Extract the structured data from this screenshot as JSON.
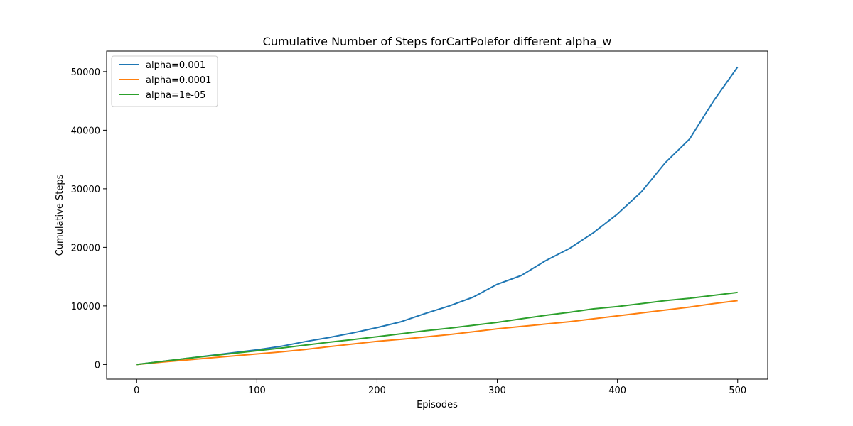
{
  "chart_data": {
    "type": "line",
    "title": "Cumulative Number of Steps forCartPolefor different alpha_w",
    "xlabel": "Episodes",
    "ylabel": "Cumulative Steps",
    "xlim": [
      -25,
      525
    ],
    "ylim": [
      -2500,
      53500
    ],
    "xticks": [
      0,
      100,
      200,
      300,
      400,
      500
    ],
    "yticks": [
      0,
      10000,
      20000,
      30000,
      40000,
      50000
    ],
    "grid": false,
    "legend_position": "upper-left",
    "x": [
      0,
      20,
      40,
      60,
      80,
      100,
      120,
      140,
      160,
      180,
      200,
      220,
      240,
      260,
      280,
      300,
      320,
      340,
      360,
      380,
      400,
      420,
      440,
      460,
      480,
      500
    ],
    "series": [
      {
        "name": "alpha=0.001",
        "color": "#1f77b4",
        "values": [
          0,
          500,
          1000,
          1500,
          2000,
          2500,
          3100,
          3900,
          4600,
          5400,
          6300,
          7300,
          8700,
          10000,
          11500,
          13700,
          15200,
          17700,
          19800,
          22500,
          25700,
          29500,
          34500,
          38500,
          45000,
          50800
        ]
      },
      {
        "name": "alpha=0.0001",
        "color": "#ff7f0e",
        "values": [
          0,
          400,
          750,
          1100,
          1450,
          1800,
          2150,
          2550,
          3050,
          3500,
          3950,
          4300,
          4700,
          5100,
          5600,
          6100,
          6500,
          6900,
          7300,
          7800,
          8300,
          8800,
          9300,
          9800,
          10400,
          10900
        ]
      },
      {
        "name": "alpha=1e-05",
        "color": "#2ca02c",
        "values": [
          0,
          500,
          1000,
          1450,
          1900,
          2350,
          2800,
          3300,
          3800,
          4250,
          4750,
          5250,
          5750,
          6200,
          6700,
          7200,
          7800,
          8400,
          8900,
          9500,
          9900,
          10400,
          10900,
          11300,
          11800,
          12300
        ]
      }
    ]
  }
}
